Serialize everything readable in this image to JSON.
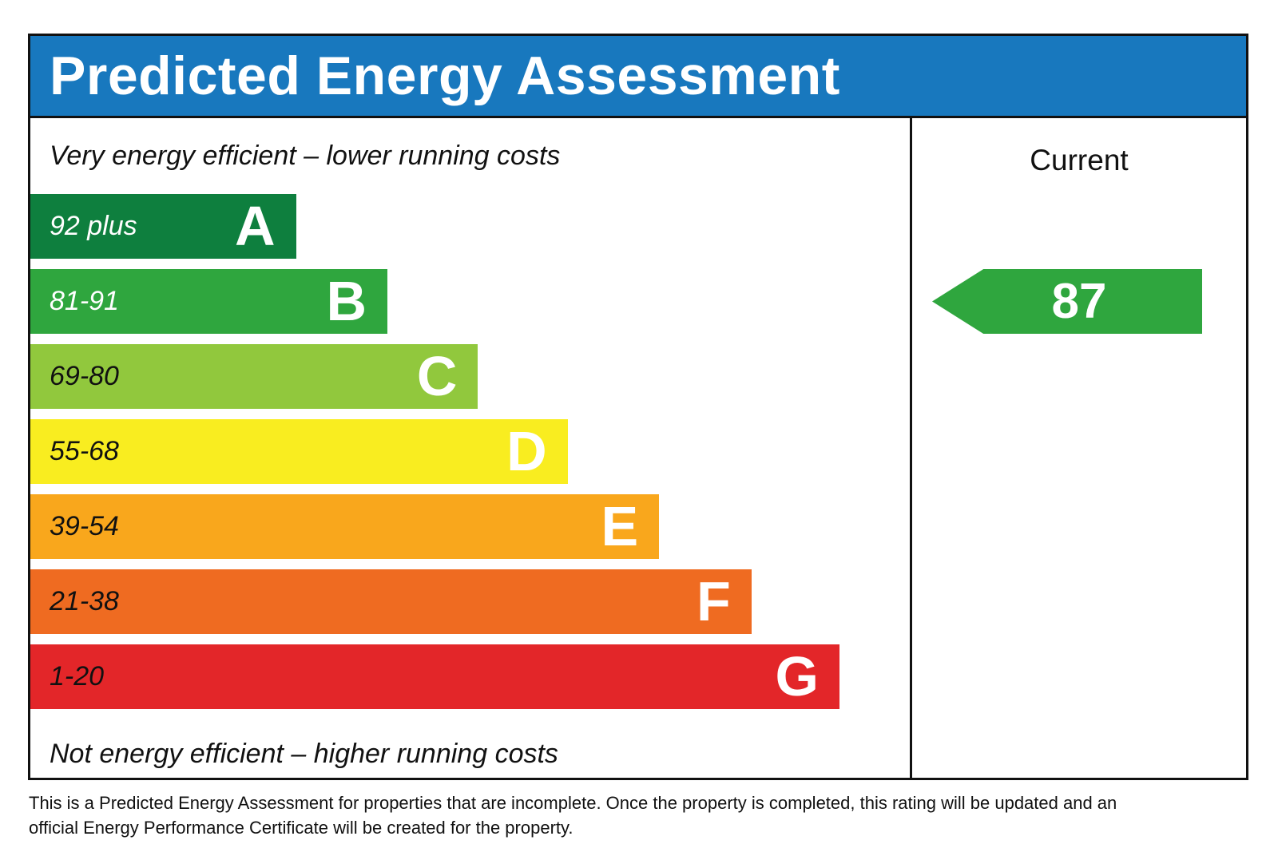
{
  "header": {
    "title": "Predicted Energy Assessment",
    "bg_color": "#1878be"
  },
  "chart_data": {
    "type": "bar",
    "title": "Predicted Energy Assessment",
    "top_note": "Very energy efficient – lower running costs",
    "bottom_note": "Not energy efficient – higher running costs",
    "column_header": "Current",
    "bands": [
      {
        "letter": "A",
        "label": "92 plus",
        "min": 92,
        "max": 100,
        "color": "#0e7f3e",
        "width_pct": 30.2,
        "label_color": "#ffffff"
      },
      {
        "letter": "B",
        "label": "81-91",
        "min": 81,
        "max": 91,
        "color": "#2fa63e",
        "width_pct": 40.6,
        "label_color": "#ffffff"
      },
      {
        "letter": "C",
        "label": "69-80",
        "min": 69,
        "max": 80,
        "color": "#91c83d",
        "width_pct": 50.9,
        "label_color": "#111111"
      },
      {
        "letter": "D",
        "label": "55-68",
        "min": 55,
        "max": 68,
        "color": "#f9ed20",
        "width_pct": 61.1,
        "label_color": "#111111"
      },
      {
        "letter": "E",
        "label": "39-54",
        "min": 39,
        "max": 54,
        "color": "#f9a71c",
        "width_pct": 71.5,
        "label_color": "#111111"
      },
      {
        "letter": "F",
        "label": "21-38",
        "min": 21,
        "max": 38,
        "color": "#ef6b21",
        "width_pct": 82.0,
        "label_color": "#111111"
      },
      {
        "letter": "G",
        "label": "1-20",
        "min": 1,
        "max": 20,
        "color": "#e32629",
        "width_pct": 92.0,
        "label_color": "#111111"
      }
    ],
    "current": {
      "value": "87",
      "band": "B",
      "arrow_color": "#2fa63e"
    },
    "legend_position": "right-column",
    "xlabel": "",
    "ylabel": ""
  },
  "footer": {
    "line1": "This is a Predicted Energy Assessment for properties that are incomplete. Once the property is completed, this rating will be updated and an",
    "line2": "official Energy Performance Certificate will be created for the property."
  }
}
